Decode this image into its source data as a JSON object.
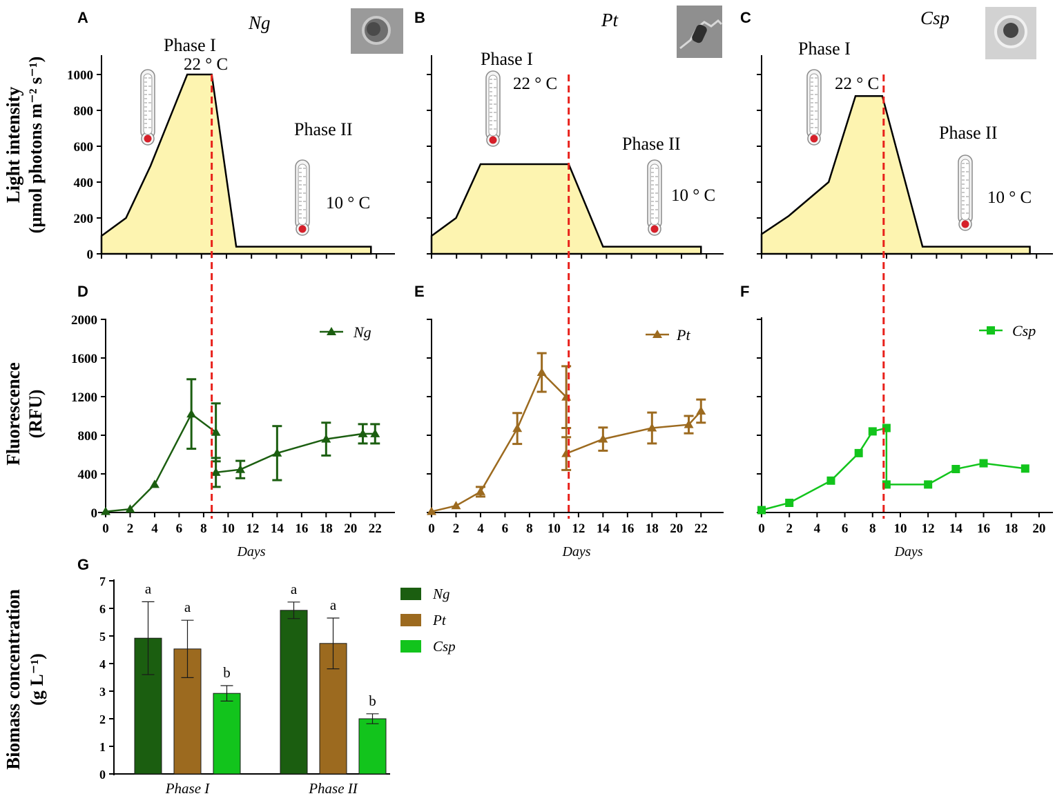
{
  "colors": {
    "ng": "#1b5e10",
    "pt": "#9c6a1f",
    "csp": "#12c41c",
    "fill": "#fdf4b0",
    "divider": "#e8201a",
    "thermo_red": "#d6202a"
  },
  "chart_data": [
    {
      "id": "A",
      "type": "area",
      "panel_letter": "A",
      "species": "Ng",
      "phase1_label": "Phase I",
      "temp1_label": "22 ° C",
      "phase2_label": "Phase II",
      "temp2_label": "10 ° C",
      "ylabel_line1": "Light intensity",
      "ylabel_line2": "(µmol photons m⁻² s⁻¹)",
      "xlim": [
        0,
        23
      ],
      "ylim": [
        0,
        1000
      ],
      "yticks": [
        0,
        200,
        400,
        600,
        800,
        1000
      ],
      "x": [
        0,
        2,
        4,
        7,
        9,
        11,
        22
      ],
      "y": [
        100,
        200,
        490,
        1000,
        1000,
        40,
        40
      ],
      "divider_x": 9
    },
    {
      "id": "B",
      "type": "area",
      "panel_letter": "B",
      "species": "Pt",
      "phase1_label": "Phase I",
      "temp1_label": "22 ° C",
      "phase2_label": "Phase II",
      "temp2_label": "10 ° C",
      "xlim": [
        0,
        23
      ],
      "ylim": [
        0,
        1000
      ],
      "yticks": [
        0,
        200,
        400,
        600,
        800,
        1000
      ],
      "x": [
        0,
        2,
        4,
        11.2,
        14,
        22
      ],
      "y": [
        100,
        200,
        500,
        500,
        40,
        40
      ],
      "divider_x": 11.2
    },
    {
      "id": "C",
      "type": "area",
      "panel_letter": "C",
      "species": "Csp",
      "phase1_label": "Phase I",
      "temp1_label": "22 ° C",
      "phase2_label": "Phase II",
      "temp2_label": "10 ° C",
      "xlim": [
        0,
        21
      ],
      "ylim": [
        0,
        1000
      ],
      "yticks": [
        0,
        200,
        400,
        600,
        800,
        1000
      ],
      "x": [
        0,
        2,
        5,
        7,
        9,
        12,
        20
      ],
      "y": [
        110,
        210,
        400,
        880,
        880,
        40,
        40
      ],
      "divider_x": 9.1
    },
    {
      "id": "D",
      "type": "line",
      "panel_letter": "D",
      "xlabel": "Days",
      "ylabel_line1": "Fluorescence",
      "ylabel_line2": "(RFU)",
      "xlim": [
        0,
        23
      ],
      "ylim": [
        0,
        2000
      ],
      "xticks": [
        0,
        2,
        4,
        6,
        8,
        10,
        12,
        14,
        16,
        18,
        20,
        22
      ],
      "yticks": [
        0,
        400,
        800,
        1200,
        1600,
        2000
      ],
      "divider_x": 9,
      "series": [
        {
          "name": "Ng",
          "marker": "triangle",
          "x": [
            0,
            2,
            4,
            7,
            9,
            9,
            11,
            14,
            18,
            21,
            22
          ],
          "y": [
            10,
            35,
            290,
            1020,
            830,
            415,
            445,
            615,
            760,
            815,
            815
          ],
          "err": [
            0,
            0,
            0,
            360,
            300,
            150,
            90,
            280,
            170,
            100,
            100
          ]
        }
      ]
    },
    {
      "id": "E",
      "type": "line",
      "panel_letter": "E",
      "xlabel": "Days",
      "xlim": [
        0,
        23
      ],
      "ylim": [
        0,
        2000
      ],
      "xticks": [
        0,
        2,
        4,
        6,
        8,
        10,
        12,
        14,
        16,
        18,
        20,
        22
      ],
      "yticks": [
        0,
        400,
        800,
        1200,
        1600,
        2000
      ],
      "divider_x": 11.2,
      "series": [
        {
          "name": "Pt",
          "marker": "triangle",
          "x": [
            0,
            2,
            4,
            7,
            9,
            11,
            11,
            14,
            18,
            21,
            22
          ],
          "y": [
            10,
            70,
            215,
            870,
            1450,
            1195,
            610,
            760,
            875,
            910,
            1050
          ],
          "err": [
            0,
            0,
            50,
            160,
            200,
            320,
            170,
            120,
            160,
            90,
            120
          ]
        }
      ]
    },
    {
      "id": "F",
      "type": "line",
      "panel_letter": "F",
      "xlabel": "Days",
      "xlim": [
        0,
        21
      ],
      "ylim": [
        0,
        2000
      ],
      "xticks": [
        0,
        2,
        4,
        6,
        8,
        10,
        12,
        14,
        16,
        18,
        20
      ],
      "yticks": [
        0,
        400,
        800,
        1200,
        1600,
        2000
      ],
      "divider_x": 9.1,
      "series": [
        {
          "name": "Csp",
          "marker": "square",
          "x": [
            0,
            2,
            5,
            7,
            8,
            9,
            9,
            12,
            14,
            16,
            19
          ],
          "y": [
            25,
            100,
            330,
            615,
            840,
            875,
            290,
            290,
            450,
            510,
            455
          ],
          "err": [
            0,
            0,
            0,
            0,
            0,
            0,
            0,
            0,
            0,
            0,
            0
          ]
        }
      ]
    },
    {
      "id": "G",
      "type": "bar",
      "panel_letter": "G",
      "ylabel_line1": "Biomass concentration",
      "ylabel_line2": "(g L⁻¹)",
      "categories": [
        "Phase I",
        "Phase II"
      ],
      "ylim": [
        0,
        7
      ],
      "yticks": [
        0,
        1,
        2,
        3,
        4,
        5,
        6,
        7
      ],
      "series": [
        {
          "name": "Ng",
          "values": [
            4.92,
            5.93
          ],
          "err": [
            1.32,
            0.3
          ],
          "letters": [
            "a",
            "a"
          ]
        },
        {
          "name": "Pt",
          "values": [
            4.53,
            4.73
          ],
          "err": [
            1.04,
            0.92
          ],
          "letters": [
            "a",
            "a"
          ]
        },
        {
          "name": "Csp",
          "values": [
            2.92,
            2.0
          ],
          "err": [
            0.28,
            0.18
          ],
          "letters": [
            "b",
            "b"
          ]
        }
      ]
    }
  ]
}
